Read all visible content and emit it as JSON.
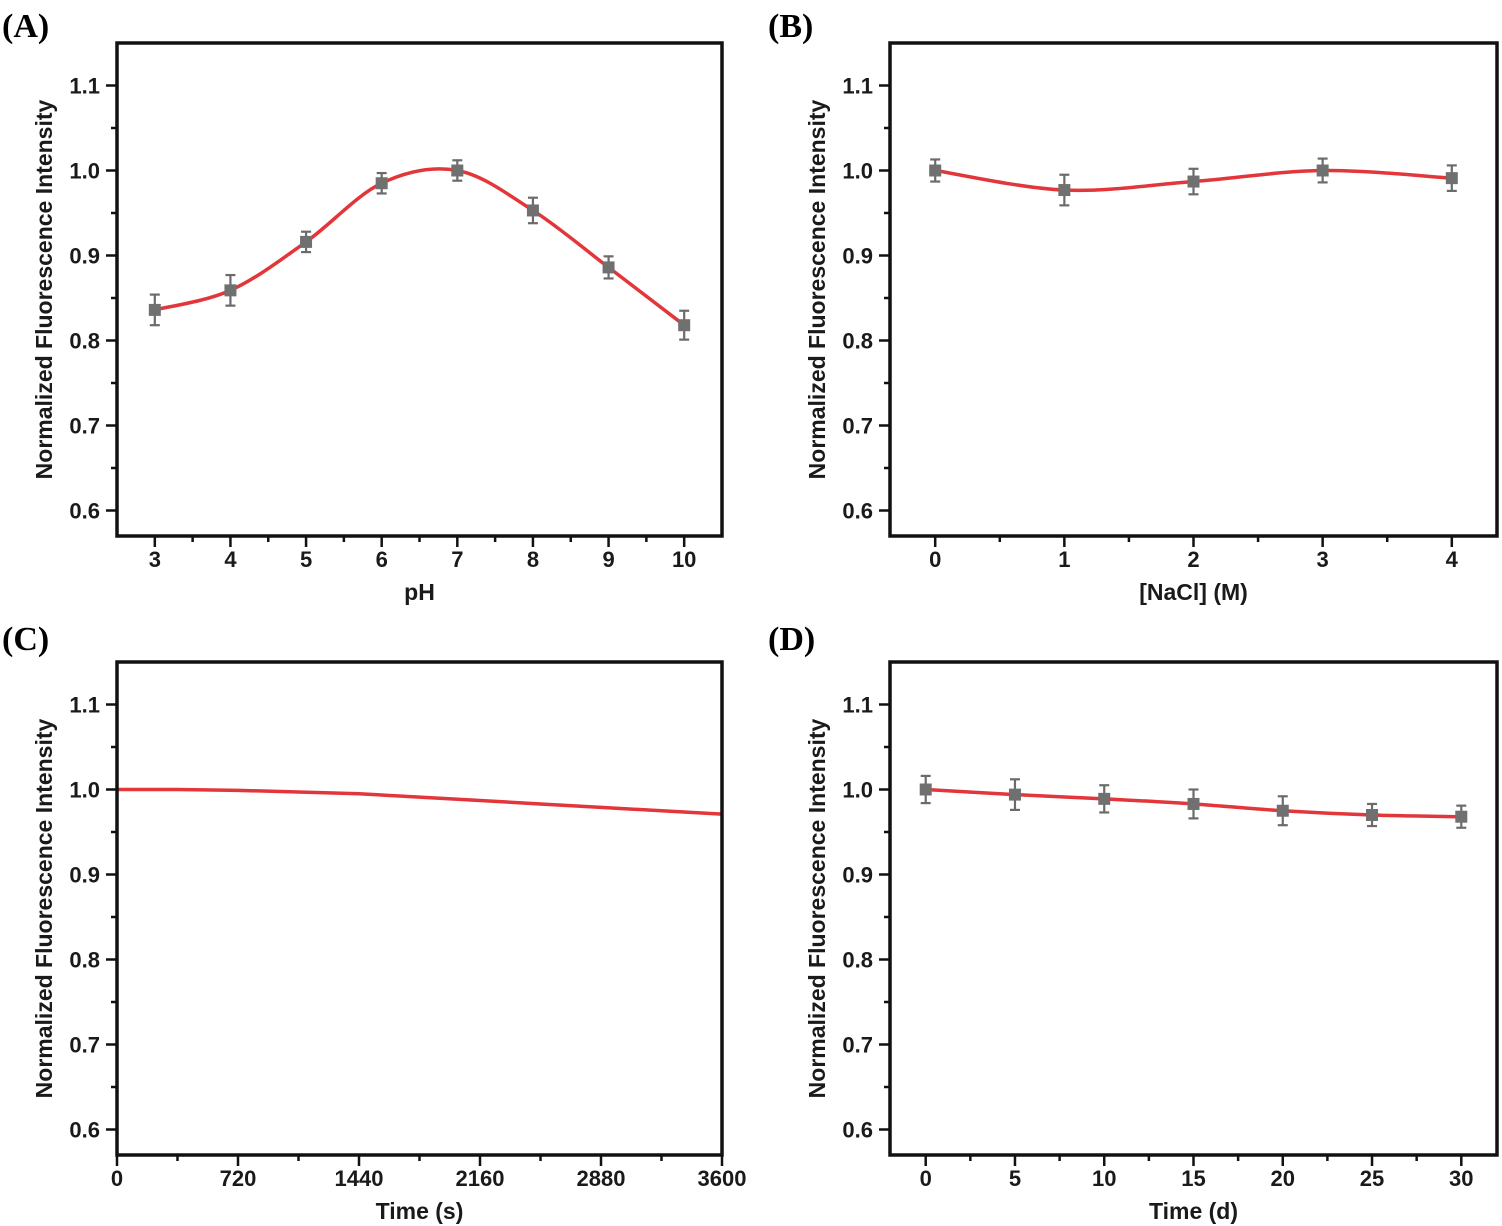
{
  "colors": {
    "curve": "#e2363a",
    "marker": "#707070",
    "errorbar": "#6b6b6b",
    "frame": "#111111"
  },
  "chart_data": [
    {
      "id": "A",
      "panel_label": "(A)",
      "type": "line",
      "xlabel": "pH",
      "ylabel": "Normalized Fluorescence Intensity",
      "xlim": [
        2.5,
        10.5
      ],
      "ylim": [
        0.57,
        1.15
      ],
      "xticks": [
        3,
        4,
        5,
        6,
        7,
        8,
        9,
        10
      ],
      "yticks": [
        0.6,
        0.7,
        0.8,
        0.9,
        1.0,
        1.1
      ],
      "ytick_labels": [
        "0.6",
        "0.7",
        "0.8",
        "0.9",
        "1.0",
        "1.1"
      ],
      "smooth": true,
      "markers": true,
      "x": [
        3,
        4,
        5,
        6,
        7,
        8,
        9,
        10
      ],
      "y": [
        0.836,
        0.859,
        0.916,
        0.985,
        1.0,
        0.953,
        0.886,
        0.818
      ],
      "err": [
        0.018,
        0.018,
        0.012,
        0.012,
        0.012,
        0.015,
        0.013,
        0.017
      ]
    },
    {
      "id": "B",
      "panel_label": "(B)",
      "type": "line",
      "xlabel": "[NaCl] (M)",
      "ylabel": "Normalized Fluorescence Intensity",
      "xlim": [
        -0.35,
        4.35
      ],
      "ylim": [
        0.57,
        1.15
      ],
      "xticks": [
        0,
        1,
        2,
        3,
        4
      ],
      "yticks": [
        0.6,
        0.7,
        0.8,
        0.9,
        1.0,
        1.1
      ],
      "ytick_labels": [
        "0.6",
        "0.7",
        "0.8",
        "0.9",
        "1.0",
        "1.1"
      ],
      "smooth": true,
      "markers": true,
      "x": [
        0,
        1,
        2,
        3,
        4
      ],
      "y": [
        1.0,
        0.977,
        0.987,
        1.0,
        0.991
      ],
      "err": [
        0.013,
        0.018,
        0.015,
        0.014,
        0.015
      ]
    },
    {
      "id": "C",
      "panel_label": "(C)",
      "type": "line",
      "xlabel": "Time (s)",
      "ylabel": "Normalized Fluorescence Intensity",
      "xlim": [
        0,
        3600
      ],
      "ylim": [
        0.57,
        1.15
      ],
      "xticks": [
        0,
        720,
        1440,
        2160,
        2880,
        3600
      ],
      "yticks": [
        0.6,
        0.7,
        0.8,
        0.9,
        1.0,
        1.1
      ],
      "ytick_labels": [
        "0.6",
        "0.7",
        "0.8",
        "0.9",
        "1.0",
        "1.1"
      ],
      "smooth": false,
      "markers": false,
      "x": [
        0,
        360,
        720,
        1080,
        1440,
        1800,
        2160,
        2520,
        2880,
        3240,
        3600
      ],
      "y": [
        1.0,
        1.0,
        0.999,
        0.997,
        0.995,
        0.991,
        0.987,
        0.983,
        0.979,
        0.975,
        0.971
      ]
    },
    {
      "id": "D",
      "panel_label": "(D)",
      "type": "line",
      "xlabel": "Time (d)",
      "ylabel": "Normalized Fluorescence Intensity",
      "xlim": [
        -2,
        32
      ],
      "ylim": [
        0.57,
        1.15
      ],
      "xticks": [
        0,
        5,
        10,
        15,
        20,
        25,
        30
      ],
      "yticks": [
        0.6,
        0.7,
        0.8,
        0.9,
        1.0,
        1.1
      ],
      "ytick_labels": [
        "0.6",
        "0.7",
        "0.8",
        "0.9",
        "1.0",
        "1.1"
      ],
      "smooth": true,
      "markers": true,
      "x": [
        0,
        5,
        10,
        15,
        20,
        25,
        30
      ],
      "y": [
        1.0,
        0.994,
        0.989,
        0.983,
        0.975,
        0.97,
        0.968
      ],
      "err": [
        0.016,
        0.018,
        0.016,
        0.017,
        0.017,
        0.013,
        0.013
      ]
    }
  ]
}
